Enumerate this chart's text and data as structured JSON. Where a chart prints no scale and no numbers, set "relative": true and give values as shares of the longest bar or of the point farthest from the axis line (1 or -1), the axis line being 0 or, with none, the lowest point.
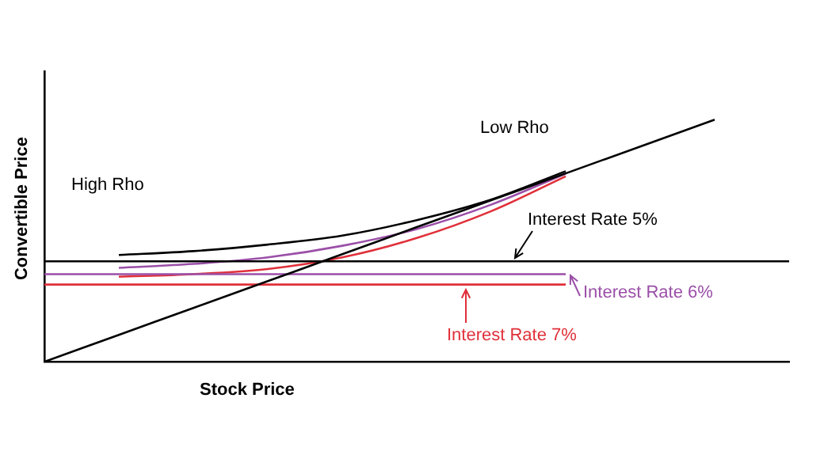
{
  "chart_data": {
    "type": "line",
    "relative": true,
    "xlabel": "Stock Price",
    "ylabel": "Convertible Price",
    "annotations": [
      "High Rho",
      "Low Rho"
    ],
    "categories": [
      null,
      null,
      null,
      null,
      null,
      null,
      null,
      null,
      null,
      null,
      null
    ],
    "grid": false,
    "legend": "right",
    "marker": "none",
    "line_style": "solid",
    "series": [
      {
        "color": "#000000",
        "values": [
          0,
          0.111,
          0.222,
          0.333,
          0.444,
          0.556,
          0.667,
          0.778,
          0.889,
          1,
          null
        ]
      },
      {
        "name": "Interest Rate 5%",
        "color": "#000000",
        "values": [
          0.415,
          0.415,
          0.415,
          0.415,
          0.415,
          0.415,
          0.415,
          0.415,
          0.415,
          0.415,
          0.415
        ]
      },
      {
        "name": "Interest Rate 6%",
        "color": "#9b4fa8",
        "values": [
          0.362,
          0.362,
          0.362,
          0.362,
          0.362,
          0.362,
          0.362,
          0.362,
          null,
          null,
          null
        ]
      },
      {
        "name": "Interest Rate 7%",
        "color": "#e0303a",
        "values": [
          0.319,
          0.319,
          0.319,
          0.319,
          0.319,
          0.319,
          0.319,
          0.319,
          null,
          null,
          null
        ]
      },
      {
        "color": "#000000",
        "values": [
          null,
          0.441,
          0.457,
          0.484,
          0.521,
          0.585,
          0.67,
          0.787,
          null,
          null,
          null
        ]
      },
      {
        "color": "#9b4fa8",
        "values": [
          null,
          0.388,
          0.404,
          0.431,
          0.479,
          0.548,
          0.649,
          0.777,
          null,
          null,
          null
        ]
      },
      {
        "color": "#e0303a",
        "values": [
          null,
          0.351,
          0.362,
          0.383,
          0.431,
          0.511,
          0.622,
          0.766,
          null,
          null,
          null
        ]
      }
    ]
  }
}
